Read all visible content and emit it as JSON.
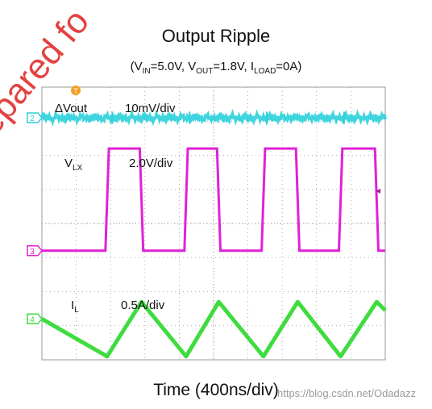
{
  "chart_data": {
    "type": "line",
    "title": "Output Ripple",
    "subtitle_parts": {
      "vin_sym": "V",
      "vin_sub": "IN",
      "vin_val": "=5.0V, ",
      "vout_sym": "V",
      "vout_sub": "OUT",
      "vout_val": "=1.8V, ",
      "iload_sym": "I",
      "iload_sub": "LOAD",
      "iload_val": "=0A"
    },
    "xlabel": "Time (400ns/div)",
    "x_divisions": 10,
    "y_divisions": 8,
    "x_unit": "div",
    "grid": true,
    "colors": {
      "vout": "#2ad0dc",
      "vlx": "#e021d6",
      "il": "#3fdc3f",
      "grid": "#9a9a9a"
    },
    "series": [
      {
        "name_sym": "ΔVout",
        "scale": "10mV/div",
        "channel_marker": "2",
        "baseline_div": 7.1,
        "x": [
          0,
          2.0,
          4.0,
          6.0,
          8.0,
          10.0
        ],
        "y": [
          7.1,
          7.1,
          7.1,
          7.1,
          7.1,
          7.1
        ]
      },
      {
        "name_sym": "V",
        "name_sub": "LX",
        "scale": "2.0V/div",
        "channel_marker": "3",
        "x": [
          0,
          1.85,
          1.95,
          2.85,
          2.95,
          4.15,
          4.25,
          5.1,
          5.2,
          6.4,
          6.5,
          7.4,
          7.5,
          8.65,
          8.75,
          9.7,
          9.8,
          10
        ],
        "y": [
          3.2,
          3.2,
          6.2,
          6.2,
          3.2,
          3.2,
          6.2,
          6.2,
          3.2,
          3.2,
          6.2,
          6.2,
          3.2,
          3.2,
          6.2,
          6.2,
          3.2,
          3.2
        ]
      },
      {
        "name_sym": "I",
        "name_sub": "L",
        "scale": "0.5A/div",
        "channel_marker": "4",
        "x": [
          0,
          1.9,
          2.9,
          4.2,
          5.15,
          6.45,
          7.45,
          8.7,
          9.75,
          10
        ],
        "y": [
          1.2,
          0.1,
          1.7,
          0.1,
          1.7,
          0.1,
          1.7,
          0.1,
          1.7,
          1.45
        ]
      }
    ]
  },
  "watermark": {
    "left": "repared fo",
    "bottom": "https://blog.csdn.net/Odadazz"
  },
  "markers": {
    "trigger": "T",
    "arrow": "◂"
  }
}
